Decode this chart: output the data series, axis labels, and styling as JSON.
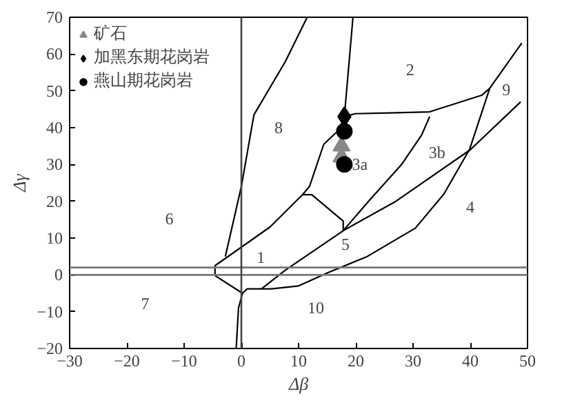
{
  "chart_data": {
    "type": "scatter",
    "xlabel": "Δβ",
    "ylabel": "Δγ",
    "xlim": [
      -30,
      50
    ],
    "ylim": [
      -20,
      70
    ],
    "xticks": [
      -30,
      -20,
      -10,
      0,
      10,
      20,
      30,
      40,
      50
    ],
    "yticks": [
      -20,
      -10,
      0,
      10,
      20,
      30,
      40,
      50,
      60,
      70
    ],
    "grid": false,
    "legend": "top left",
    "series": [
      {
        "type": "line",
        "color": "#000000",
        "x": [
          -2.8,
          0,
          2.2,
          7.7,
          11.5
        ],
        "values": [
          5,
          24,
          43.5,
          58,
          70
        ]
      },
      {
        "type": "line",
        "color": "#000000",
        "x": [
          17.8,
          17.8,
          12.3,
          10.7,
          5,
          -4.6,
          -4.6,
          0.2,
          1,
          5.2,
          10,
          15.3,
          22,
          30.4,
          35.4,
          39.9,
          43.4,
          49
        ],
        "values": [
          12,
          14.6,
          21.8,
          21.8,
          13,
          2.5,
          -0.2,
          -5,
          -3.8,
          -3.8,
          -3,
          0.7,
          5,
          12.7,
          22,
          34.2,
          50.7,
          63
        ]
      },
      {
        "type": "line",
        "color": "#000000",
        "x": [
          3.5,
          7.7,
          17.8,
          27,
          40,
          48.8
        ],
        "values": [
          -3.8,
          1.3,
          12,
          20,
          34,
          47
        ]
      },
      {
        "type": "line",
        "color": "#000000",
        "x": [
          17.8,
          22.4,
          28,
          31.5,
          32.9
        ],
        "values": [
          12,
          20.3,
          30,
          38,
          43
        ]
      },
      {
        "type": "line",
        "color": "#000000",
        "x": [
          19.5,
          18,
          19.9,
          26,
          32.9,
          42,
          43.4
        ],
        "values": [
          70,
          43,
          43.8,
          44,
          44.3,
          48.8,
          50.7
        ]
      },
      {
        "type": "line",
        "color": "#000000",
        "x": [
          18,
          17,
          14.4,
          11.9,
          10.7
        ],
        "values": [
          43,
          39.3,
          35.5,
          24,
          21.8
        ]
      },
      {
        "type": "line",
        "color": "#000000",
        "x": [
          0.2,
          -0.5,
          -0.9
        ],
        "values": [
          -5,
          -9,
          -20
        ]
      },
      {
        "name": "矿石",
        "marker": "triangle",
        "color": "#888888",
        "x": [
          17.5,
          17.5
        ],
        "values": [
          35,
          32
        ]
      },
      {
        "name": "加黑东期花岗岩",
        "marker": "diamond",
        "color": "#000000",
        "x": [
          18
        ],
        "values": [
          43
        ]
      },
      {
        "name": "燕山期花岗岩",
        "marker": "circle",
        "color": "#000000",
        "x": [
          18,
          18
        ],
        "values": [
          39,
          30
        ]
      }
    ],
    "ref_lines": [
      {
        "axis": "y",
        "value": 0,
        "color": "#777777"
      },
      {
        "axis": "y",
        "value": 2,
        "color": "#777777"
      },
      {
        "axis": "x",
        "value": 0,
        "color": "#444444"
      }
    ],
    "annotations": [
      "1",
      "2",
      "3a",
      "3b",
      "4",
      "5",
      "6",
      "7",
      "8",
      "9",
      "10"
    ]
  }
}
